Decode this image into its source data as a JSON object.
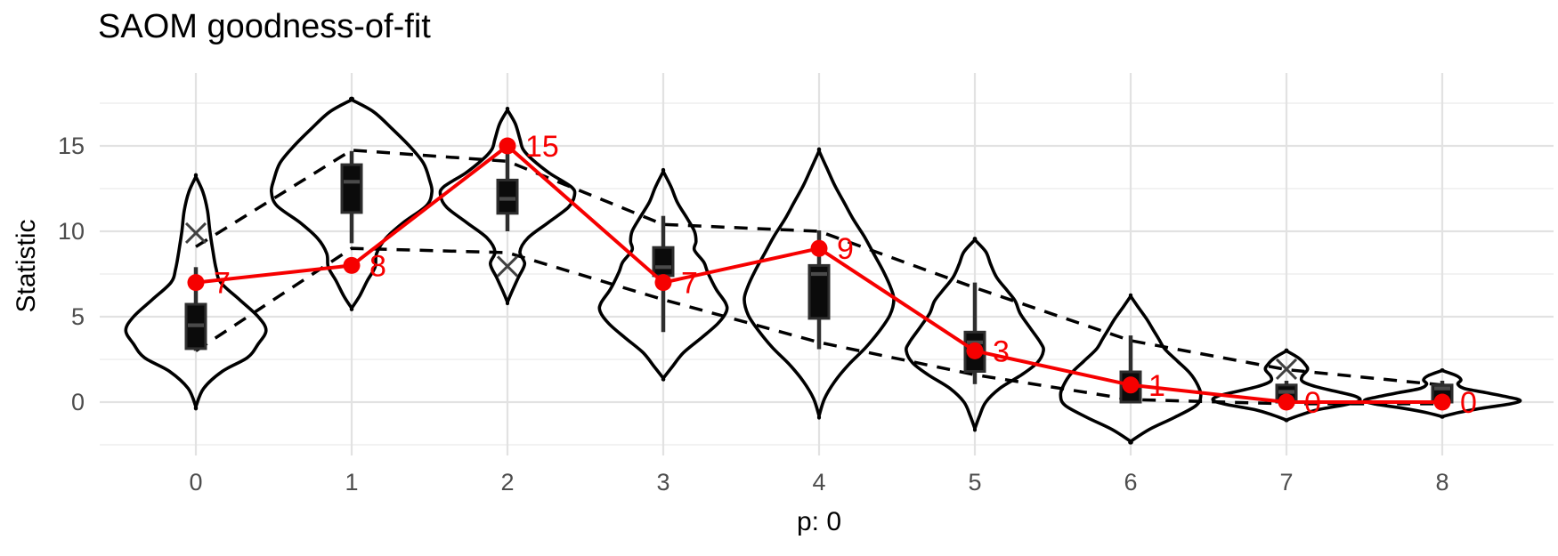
{
  "chart_data": {
    "type": "violin",
    "title": "SAOM goodness-of-fit",
    "xlabel": "p: 0",
    "ylabel": "Statistic",
    "x_ticks": [
      "0",
      "1",
      "2",
      "3",
      "4",
      "5",
      "6",
      "7",
      "8"
    ],
    "y_ticks": [
      0,
      5,
      10,
      15
    ],
    "y_minor": [
      -2.5,
      2.5,
      7.5,
      12.5,
      17.5
    ],
    "ylim": [
      -3.1,
      19.2
    ],
    "grid": "on",
    "legend": "none",
    "observed": {
      "values": [
        7,
        8,
        15,
        7,
        9,
        3,
        1,
        0,
        0
      ],
      "labels": [
        "7",
        "8",
        "15",
        "7",
        "9",
        "3",
        "1",
        "0",
        "0"
      ]
    },
    "envelope": {
      "upper": [
        9.1,
        14.75,
        14.1,
        10.4,
        10.0,
        6.7,
        3.6,
        1.9,
        1.0
      ],
      "lower": [
        3.0,
        9.0,
        8.75,
        6.0,
        3.5,
        1.6,
        0.15,
        -0.1,
        -0.1
      ]
    },
    "outliers": [
      {
        "x": 0,
        "y": 9.9
      },
      {
        "x": 2,
        "y": 7.95
      },
      {
        "x": 7,
        "y": 1.93
      }
    ],
    "violins": [
      {
        "x": "0",
        "box": {
          "q1": 3.13,
          "med": 4.5,
          "q3": 5.73,
          "lo": 3.0,
          "hi": 7.9
        },
        "shape": [
          [
            13.2,
            0
          ],
          [
            12.3,
            0.045
          ],
          [
            11.2,
            0.075
          ],
          [
            10,
            0.09
          ],
          [
            8.8,
            0.11
          ],
          [
            7.8,
            0.13
          ],
          [
            7,
            0.16
          ],
          [
            6,
            0.28
          ],
          [
            5,
            0.4
          ],
          [
            4.2,
            0.45
          ],
          [
            3.4,
            0.4
          ],
          [
            2.6,
            0.33
          ],
          [
            1.8,
            0.17
          ],
          [
            0.8,
            0.05
          ],
          [
            -0.26,
            0
          ]
        ]
      },
      {
        "x": "1",
        "box": {
          "q1": 11.1,
          "med": 12.9,
          "q3": 13.9,
          "lo": 9.3,
          "hi": 14.7
        },
        "shape": [
          [
            17.7,
            0
          ],
          [
            17,
            0.14
          ],
          [
            16,
            0.26
          ],
          [
            15,
            0.37
          ],
          [
            14,
            0.46
          ],
          [
            13,
            0.5
          ],
          [
            12.3,
            0.515
          ],
          [
            11.5,
            0.48
          ],
          [
            10.5,
            0.33
          ],
          [
            9.6,
            0.22
          ],
          [
            8.7,
            0.16
          ],
          [
            7.9,
            0.15
          ],
          [
            7.1,
            0.1
          ],
          [
            6.2,
            0.05
          ],
          [
            5.5,
            0
          ]
        ]
      },
      {
        "x": "2",
        "box": {
          "q1": 11.05,
          "med": 11.9,
          "q3": 13.0,
          "lo": 10.0,
          "hi": 14.6
        },
        "shape": [
          [
            17.1,
            0
          ],
          [
            16.3,
            0.05
          ],
          [
            15.4,
            0.08
          ],
          [
            14.8,
            0.1
          ],
          [
            14.2,
            0.16
          ],
          [
            13.4,
            0.27
          ],
          [
            12.6,
            0.41
          ],
          [
            12.1,
            0.43
          ],
          [
            11.4,
            0.39
          ],
          [
            10.5,
            0.26
          ],
          [
            9.6,
            0.13
          ],
          [
            8.8,
            0.08
          ],
          [
            8.1,
            0.11
          ],
          [
            7.3,
            0.07
          ],
          [
            6.5,
            0.03
          ],
          [
            5.85,
            0
          ]
        ]
      },
      {
        "x": "3",
        "box": {
          "q1": 7.4,
          "med": 7.9,
          "q3": 9.05,
          "lo": 4.1,
          "hi": 10.9
        },
        "shape": [
          [
            13.5,
            0
          ],
          [
            12.6,
            0.05
          ],
          [
            11.7,
            0.09
          ],
          [
            10.8,
            0.15
          ],
          [
            10,
            0.2
          ],
          [
            9.4,
            0.21
          ],
          [
            8.9,
            0.2
          ],
          [
            8.2,
            0.26
          ],
          [
            7.6,
            0.285
          ],
          [
            6.6,
            0.34
          ],
          [
            5.8,
            0.4
          ],
          [
            5.3,
            0.405
          ],
          [
            4.6,
            0.35
          ],
          [
            3.8,
            0.25
          ],
          [
            2.9,
            0.13
          ],
          [
            2.1,
            0.06
          ],
          [
            1.4,
            0
          ]
        ]
      },
      {
        "x": "4",
        "box": {
          "q1": 4.9,
          "med": 7.5,
          "q3": 8.0,
          "lo": 3.1,
          "hi": 10.05
        },
        "shape": [
          [
            14.7,
            0
          ],
          [
            13.7,
            0.05
          ],
          [
            12.7,
            0.1
          ],
          [
            11.7,
            0.16
          ],
          [
            10.7,
            0.22
          ],
          [
            9.7,
            0.29
          ],
          [
            8.7,
            0.35
          ],
          [
            7.7,
            0.41
          ],
          [
            6.7,
            0.46
          ],
          [
            6,
            0.48
          ],
          [
            5.1,
            0.455
          ],
          [
            4.2,
            0.39
          ],
          [
            3.2,
            0.3
          ],
          [
            2.2,
            0.19
          ],
          [
            1.2,
            0.1
          ],
          [
            0.2,
            0.035
          ],
          [
            -0.8,
            0
          ]
        ]
      },
      {
        "x": "5",
        "box": {
          "q1": 1.8,
          "med": 3.5,
          "q3": 4.1,
          "lo": 1.05,
          "hi": 7.0
        },
        "shape": [
          [
            9.5,
            0
          ],
          [
            8.8,
            0.07
          ],
          [
            8.1,
            0.1
          ],
          [
            7.3,
            0.14
          ],
          [
            6.5,
            0.21
          ],
          [
            5.9,
            0.26
          ],
          [
            5.2,
            0.29
          ],
          [
            4.4,
            0.35
          ],
          [
            3.5,
            0.42
          ],
          [
            3,
            0.44
          ],
          [
            2.3,
            0.4
          ],
          [
            1.6,
            0.3
          ],
          [
            0.8,
            0.16
          ],
          [
            0,
            0.07
          ],
          [
            -0.8,
            0.03
          ],
          [
            -1.55,
            0
          ]
        ]
      },
      {
        "x": "6",
        "box": {
          "q1": 0,
          "med": 1.0,
          "q3": 1.77,
          "lo": 0,
          "hi": 3.9
        },
        "shape": [
          [
            6.2,
            0
          ],
          [
            5.6,
            0.045
          ],
          [
            4.9,
            0.1
          ],
          [
            4.3,
            0.14
          ],
          [
            3.7,
            0.18
          ],
          [
            3.1,
            0.22
          ],
          [
            2.4,
            0.3
          ],
          [
            1.7,
            0.38
          ],
          [
            1,
            0.43
          ],
          [
            0.4,
            0.45
          ],
          [
            -0.2,
            0.42
          ],
          [
            -0.9,
            0.28
          ],
          [
            -1.6,
            0.12
          ],
          [
            -2.3,
            0
          ]
        ]
      },
      {
        "x": "7",
        "box": {
          "q1": 0,
          "med": 0.6,
          "q3": 1.0,
          "lo": 0,
          "hi": 1.25
        },
        "shape": [
          [
            3.0,
            0
          ],
          [
            2.6,
            0.075
          ],
          [
            2.2,
            0.12
          ],
          [
            1.9,
            0.135
          ],
          [
            1.5,
            0.1
          ],
          [
            1.2,
            0.105
          ],
          [
            0.9,
            0.19
          ],
          [
            0.6,
            0.33
          ],
          [
            0.35,
            0.44
          ],
          [
            0.1,
            0.47
          ],
          [
            -0.15,
            0.38
          ],
          [
            -0.45,
            0.2
          ],
          [
            -0.75,
            0.09
          ],
          [
            -1.05,
            0
          ]
        ]
      },
      {
        "x": "8",
        "box": {
          "q1": 0,
          "med": 0.8,
          "q3": 1.0,
          "lo": 0,
          "hi": 1.25
        },
        "shape": [
          [
            1.85,
            0
          ],
          [
            1.55,
            0.09
          ],
          [
            1.3,
            0.12
          ],
          [
            1.05,
            0.1
          ],
          [
            0.8,
            0.14
          ],
          [
            0.55,
            0.28
          ],
          [
            0.3,
            0.42
          ],
          [
            0.1,
            0.5
          ],
          [
            -0.1,
            0.44
          ],
          [
            -0.35,
            0.26
          ],
          [
            -0.6,
            0.11
          ],
          [
            -0.85,
            0
          ]
        ]
      }
    ],
    "colors": {
      "red": "#F60000",
      "violin": "#000000",
      "box_fill": "#0B0B0B",
      "box_border": "#2E2E2E",
      "box_median": "#4A4A4A",
      "whisker": "#2E2E2E",
      "envelope": "#000000",
      "outlier": "#404040",
      "grid_major": "#E2E2E2",
      "grid_minor": "#EDEDED",
      "tick_text": "#4D4D4D",
      "title_text": "#000000",
      "background": "#FFFFFF"
    }
  }
}
